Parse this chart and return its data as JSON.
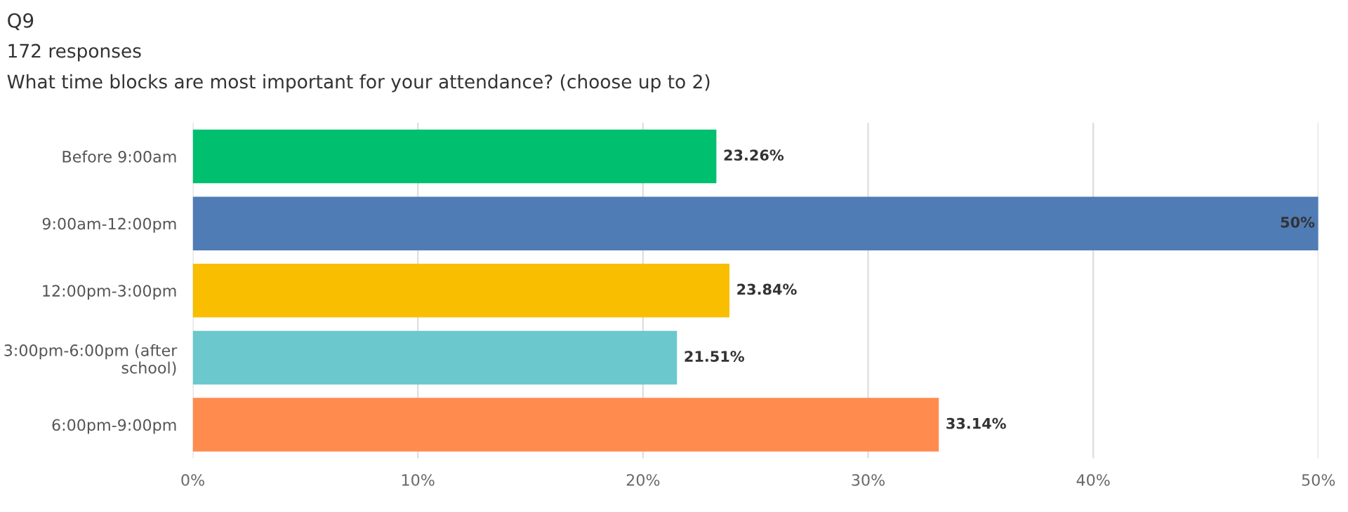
{
  "chart_data": {
    "type": "bar",
    "orientation": "horizontal",
    "title": "Q9",
    "subtitle": "172 responses",
    "annotations": [
      "What time blocks are most important for your attendance? (choose up to 2)"
    ],
    "categories": [
      "Before 9:00am",
      "9:00am-12:00pm",
      "12:00pm-3:00pm",
      "3:00pm-6:00pm (after school)",
      "6:00pm-9:00pm"
    ],
    "values": [
      23.26,
      50,
      23.84,
      21.51,
      33.14
    ],
    "colors": [
      "#00bf6f",
      "#507cb6",
      "#f9be00",
      "#6bc8cd",
      "#ff8b4f"
    ],
    "value_labels": [
      "23.26%",
      "50%",
      "23.84%",
      "21.51%",
      "33.14%"
    ],
    "xlim": [
      0,
      50
    ],
    "xticks": [
      {
        "value": 0,
        "label": "0%"
      },
      {
        "value": 10,
        "label": "10%"
      },
      {
        "value": 20,
        "label": "20%"
      },
      {
        "value": 30,
        "label": "30%"
      },
      {
        "value": 40,
        "label": "40%"
      },
      {
        "value": 50,
        "label": "50%"
      }
    ],
    "grid": "x"
  }
}
